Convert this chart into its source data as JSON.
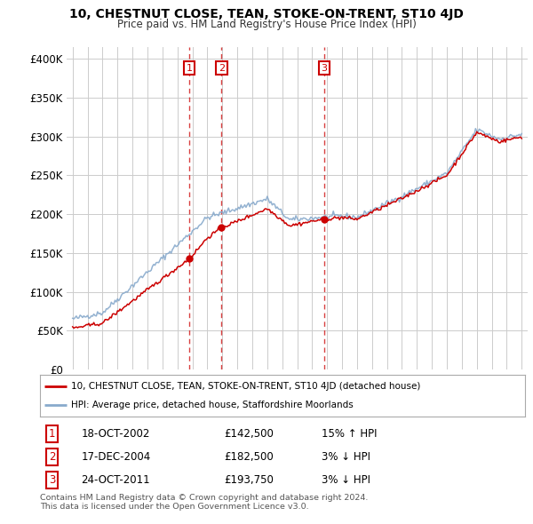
{
  "title": "10, CHESTNUT CLOSE, TEAN, STOKE-ON-TRENT, ST10 4JD",
  "subtitle": "Price paid vs. HM Land Registry's House Price Index (HPI)",
  "yticks": [
    0,
    50000,
    100000,
    150000,
    200000,
    250000,
    300000,
    350000,
    400000
  ],
  "ytick_labels": [
    "£0",
    "£50K",
    "£100K",
    "£150K",
    "£200K",
    "£250K",
    "£300K",
    "£350K",
    "£400K"
  ],
  "ylim": [
    0,
    415000
  ],
  "xlim_start": 1994.6,
  "xlim_end": 2025.4,
  "sale_points": [
    {
      "num": 1,
      "date": "18-OCT-2002",
      "price": 142500,
      "hpi_rel": "15% ↑ HPI",
      "year": 2002.8
    },
    {
      "num": 2,
      "date": "17-DEC-2004",
      "price": 182500,
      "hpi_rel": "3% ↓ HPI",
      "year": 2004.95
    },
    {
      "num": 3,
      "date": "24-OCT-2011",
      "price": 193750,
      "hpi_rel": "3% ↓ HPI",
      "year": 2011.8
    }
  ],
  "legend_line1": "10, CHESTNUT CLOSE, TEAN, STOKE-ON-TRENT, ST10 4JD (detached house)",
  "legend_line2": "HPI: Average price, detached house, Staffordshire Moorlands",
  "line_color_red": "#cc0000",
  "line_color_blue": "#88aacc",
  "footnote_line1": "Contains HM Land Registry data © Crown copyright and database right 2024.",
  "footnote_line2": "This data is licensed under the Open Government Licence v3.0.",
  "bg_color": "#ffffff",
  "grid_color": "#cccccc",
  "title_fontsize": 10,
  "subtitle_fontsize": 8.5
}
